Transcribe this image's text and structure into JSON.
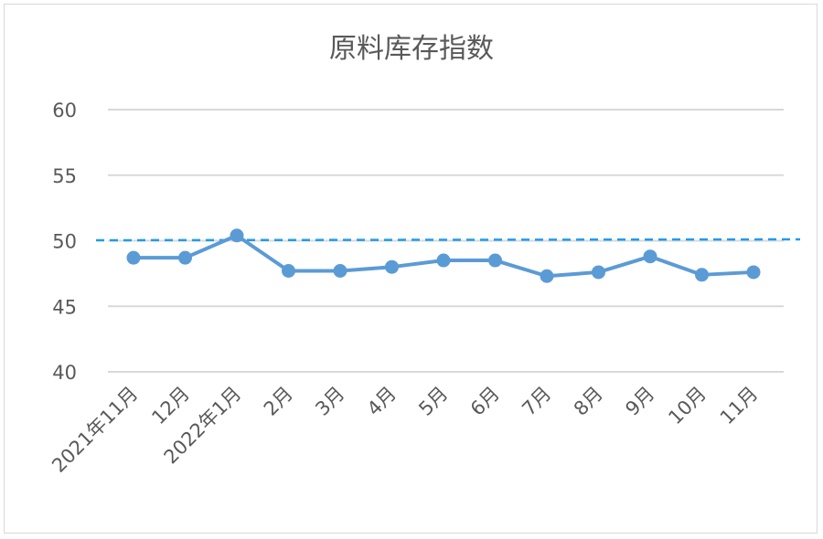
{
  "chart_data": {
    "type": "line",
    "title": "原料库存指数",
    "xlabel": "",
    "ylabel": "",
    "ylim": [
      40,
      60
    ],
    "yticks": [
      40,
      45,
      50,
      55,
      60
    ],
    "categories": [
      "2021年11月",
      "12月",
      "2022年1月",
      "2月",
      "3月",
      "4月",
      "5月",
      "6月",
      "7月",
      "8月",
      "9月",
      "10月",
      "11月"
    ],
    "series": [
      {
        "values": [
          48.7,
          48.7,
          50.4,
          47.7,
          47.7,
          48.0,
          48.5,
          48.5,
          47.3,
          47.6,
          48.8,
          47.4,
          47.6
        ]
      }
    ],
    "reference_line": {
      "value": 50,
      "style": "dashed"
    },
    "grid": true,
    "legend": "none",
    "colors": {
      "series": "#5b9bd5",
      "reference": "#1f9bf0",
      "grid": "#d9d9d9"
    }
  }
}
